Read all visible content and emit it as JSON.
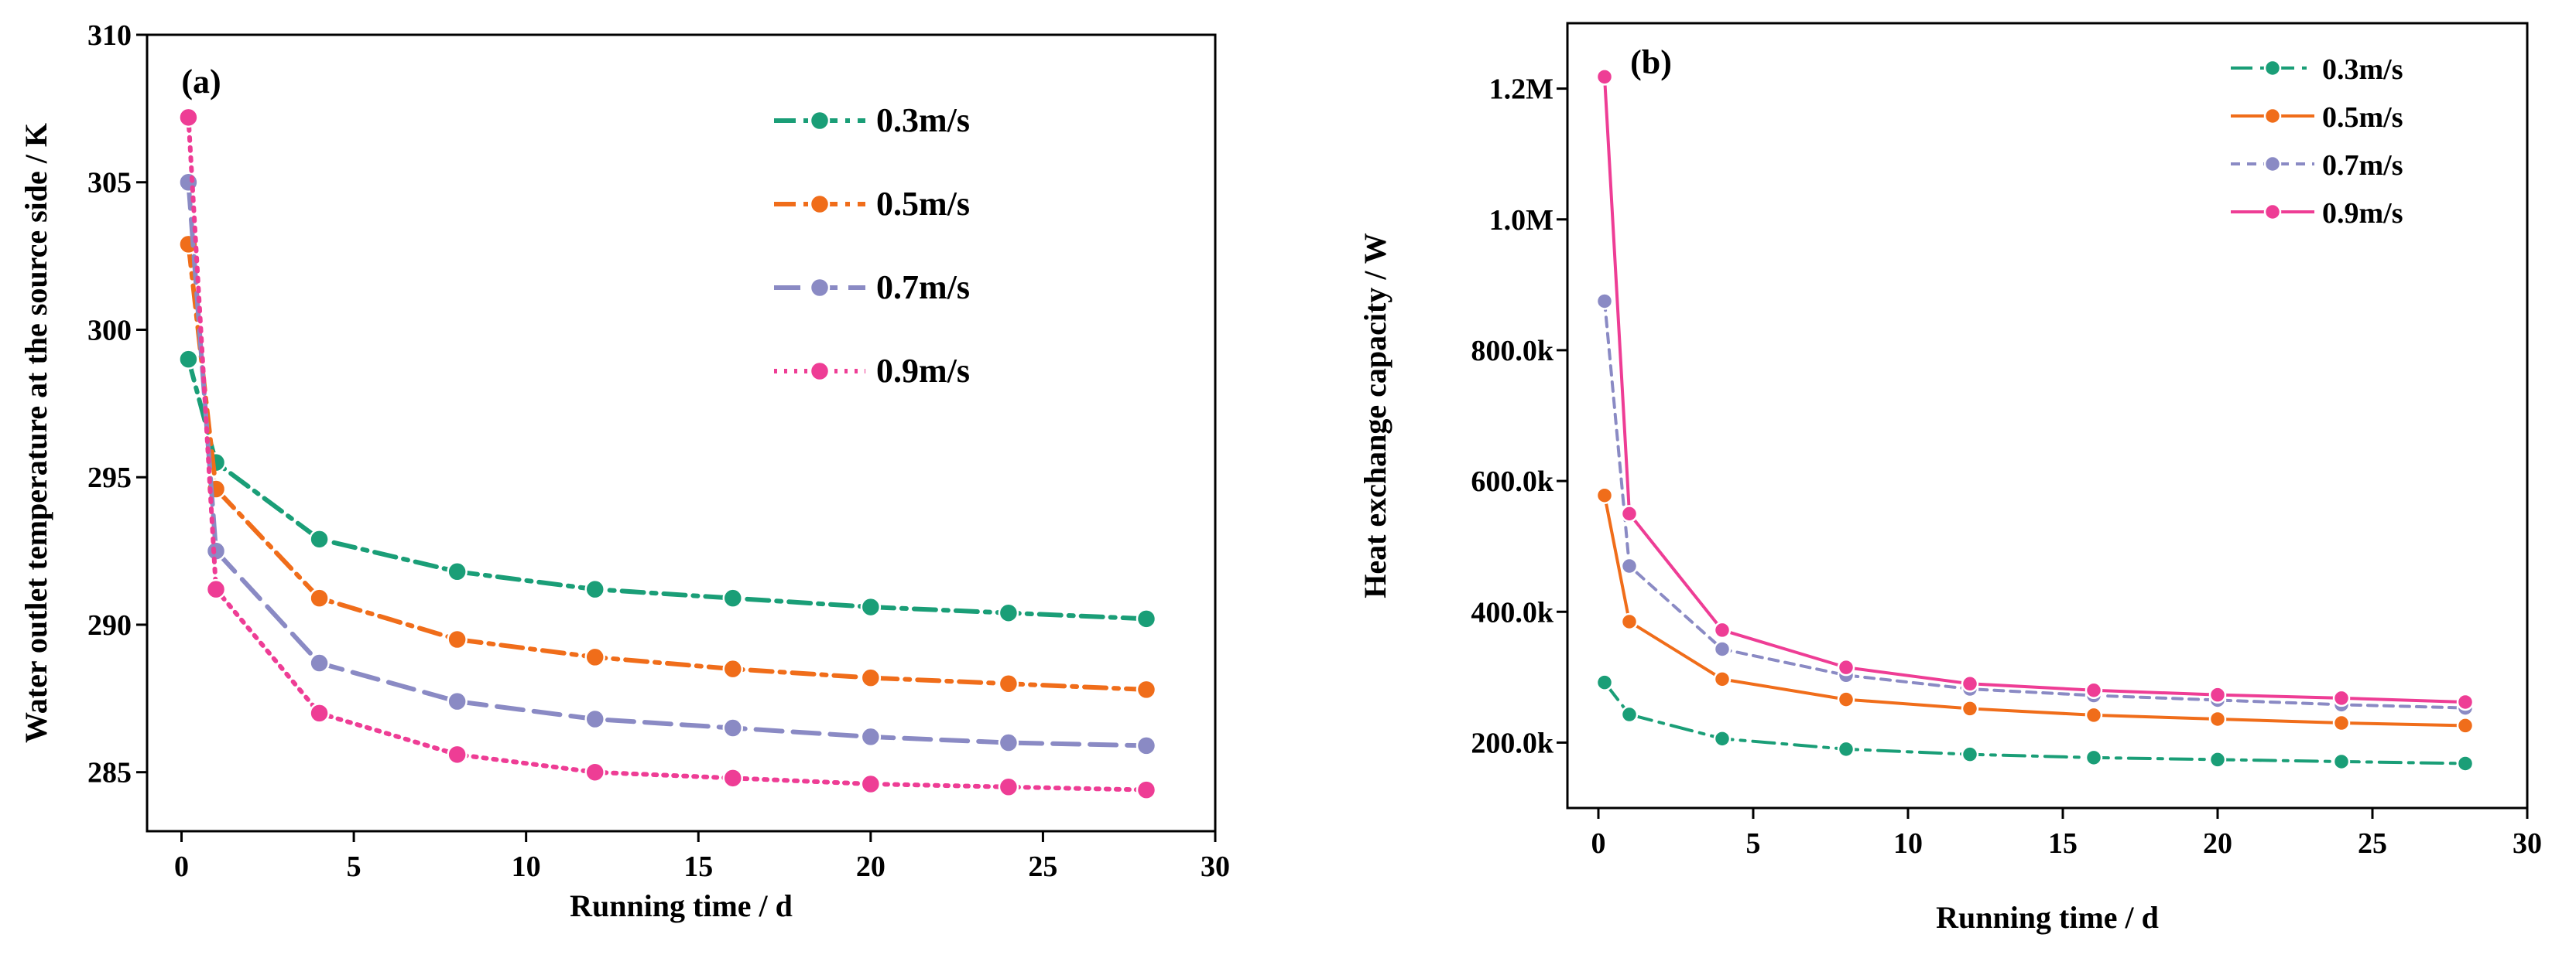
{
  "chart_data": [
    {
      "type": "line",
      "panel": "(a)",
      "xlabel": "Running time / d",
      "ylabel": "Water outlet temperature at the source side / K",
      "xlim": [
        -1,
        30
      ],
      "ylim": [
        283,
        310
      ],
      "xticks": [
        0,
        5,
        10,
        15,
        20,
        25,
        30
      ],
      "xtick_labels": [
        "0",
        "5",
        "10",
        "15",
        "20",
        "25",
        "30"
      ],
      "yticks": [
        285,
        290,
        295,
        300,
        305,
        310
      ],
      "ytick_labels": [
        "285",
        "290",
        "295",
        "300",
        "305",
        "310"
      ],
      "legend_position": "top-right",
      "grid": false,
      "x": [
        0.2,
        1,
        4,
        8,
        12,
        16,
        20,
        24,
        28
      ],
      "series": [
        {
          "name": "0.3m/s",
          "color": "#1a9e77",
          "style": "dashdot",
          "values": [
            299.0,
            295.5,
            292.9,
            291.8,
            291.2,
            290.9,
            290.6,
            290.4,
            290.2
          ]
        },
        {
          "name": "0.5m/s",
          "color": "#f06d1a",
          "style": "dashdot",
          "values": [
            302.9,
            294.6,
            290.9,
            289.5,
            288.9,
            288.5,
            288.2,
            288.0,
            287.8
          ]
        },
        {
          "name": "0.7m/s",
          "color": "#8a8ac4",
          "style": "longdash",
          "values": [
            305.0,
            292.5,
            288.7,
            287.4,
            286.8,
            286.5,
            286.2,
            286.0,
            285.9
          ]
        },
        {
          "name": "0.9m/s",
          "color": "#ee3d95",
          "style": "dotted",
          "values": [
            307.2,
            291.2,
            287.0,
            285.6,
            285.0,
            284.8,
            284.6,
            284.5,
            284.4
          ]
        }
      ]
    },
    {
      "type": "line",
      "panel": "(b)",
      "xlabel": "Running time / d",
      "ylabel": "Heat exchange capacity / W",
      "xlim": [
        -1,
        30
      ],
      "ylim": [
        100000,
        1300000
      ],
      "xticks": [
        0,
        5,
        10,
        15,
        20,
        25,
        30
      ],
      "xtick_labels": [
        "0",
        "5",
        "10",
        "15",
        "20",
        "25",
        "30"
      ],
      "yticks": [
        200000,
        400000,
        600000,
        800000,
        1000000,
        1200000
      ],
      "ytick_labels": [
        "200.0k",
        "400.0k",
        "600.0k",
        "800.0k",
        "1.0M",
        "1.2M"
      ],
      "legend_position": "top-right",
      "grid": false,
      "x": [
        0.2,
        1,
        4,
        8,
        12,
        16,
        20,
        24,
        28
      ],
      "series": [
        {
          "name": "0.3m/s",
          "color": "#1a9e77",
          "style": "dashdot",
          "values": [
            292000,
            243000,
            206000,
            190000,
            182000,
            177000,
            174000,
            171000,
            168000
          ]
        },
        {
          "name": "0.5m/s",
          "color": "#f06d1a",
          "style": "solid",
          "values": [
            578000,
            385000,
            297000,
            266000,
            252000,
            242000,
            236000,
            230000,
            226000
          ]
        },
        {
          "name": "0.7m/s",
          "color": "#8a8ac4",
          "style": "dashed",
          "values": [
            875000,
            470000,
            343000,
            303000,
            282000,
            272000,
            265000,
            258000,
            253000
          ]
        },
        {
          "name": "0.9m/s",
          "color": "#ee3d95",
          "style": "solid",
          "values": [
            1218000,
            550000,
            372000,
            315000,
            290000,
            280000,
            273000,
            268000,
            262000
          ]
        }
      ]
    }
  ]
}
